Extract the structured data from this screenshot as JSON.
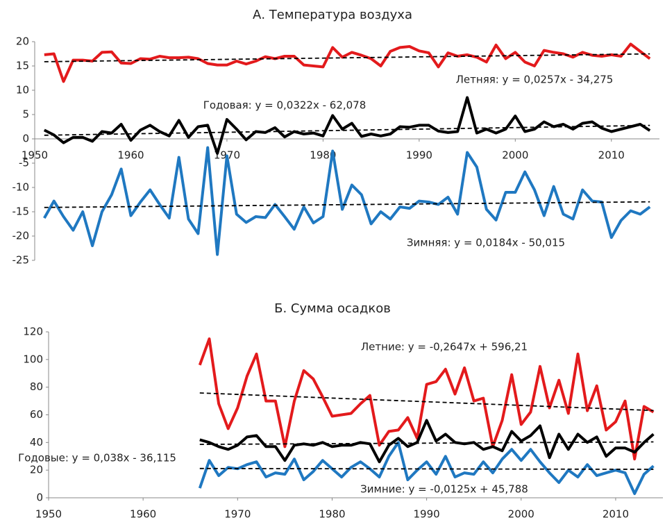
{
  "chart_data": [
    {
      "type": "line",
      "title": "А. Температура воздуха",
      "x": [
        1951,
        1952,
        1953,
        1954,
        1955,
        1956,
        1957,
        1958,
        1959,
        1960,
        1961,
        1962,
        1963,
        1964,
        1965,
        1966,
        1967,
        1968,
        1969,
        1970,
        1971,
        1972,
        1973,
        1974,
        1975,
        1976,
        1977,
        1978,
        1979,
        1980,
        1981,
        1982,
        1983,
        1984,
        1985,
        1986,
        1987,
        1988,
        1989,
        1990,
        1991,
        1992,
        1993,
        1994,
        1995,
        1996,
        1997,
        1998,
        1999,
        2000,
        2001,
        2002,
        2003,
        2004,
        2005,
        2006,
        2007,
        2008,
        2009,
        2010,
        2011,
        2012,
        2013,
        2014
      ],
      "series": [
        {
          "color": "#e31a1c",
          "values": [
            17.3,
            17.5,
            11.8,
            16.2,
            16.2,
            16,
            17.8,
            17.9,
            15.6,
            15.5,
            16.5,
            16.4,
            17,
            16.7,
            16.7,
            16.8,
            16.5,
            15.5,
            15.2,
            15.2,
            16,
            15.4,
            16,
            16.9,
            16.5,
            17,
            17,
            15.2,
            15,
            14.8,
            18.8,
            16.8,
            17.8,
            17.2,
            16.5,
            15,
            18,
            18.8,
            19,
            18.1,
            17.7,
            14.8,
            17.7,
            17,
            17.3,
            16.8,
            15.8,
            19.3,
            16.5,
            17.8,
            15.8,
            15,
            18.2,
            17.8,
            17.5,
            16.8,
            17.8,
            17.2,
            17,
            17.3,
            17,
            19.5,
            18,
            16.5
          ]
        },
        {
          "color": "#000000",
          "values": [
            1.8,
            0.8,
            -0.8,
            0.3,
            0.3,
            -0.5,
            1.5,
            1.2,
            3,
            -0.3,
            1.8,
            2.8,
            1.5,
            0.6,
            3.8,
            0.3,
            2.5,
            2.8,
            -3,
            4,
            2,
            -0.2,
            1.5,
            1.3,
            2.3,
            0.4,
            1.5,
            1,
            1.2,
            0.6,
            4.8,
            2,
            3.2,
            0.5,
            1,
            0.6,
            1,
            2.5,
            2.4,
            2.8,
            2.8,
            1.6,
            1.3,
            1.5,
            8.5,
            1.2,
            2,
            1.2,
            2,
            4.7,
            1.5,
            2,
            3.5,
            2.5,
            3,
            2,
            3.2,
            3.5,
            2.2,
            1.5,
            2,
            2.5,
            3,
            1.7
          ]
        },
        {
          "color": "#1f78c1",
          "values": [
            -16.3,
            -12.8,
            -16,
            -18.8,
            -15,
            -22,
            -15,
            -11.5,
            -6.2,
            -15.8,
            -13,
            -10.5,
            -13.5,
            -16.3,
            -3.8,
            -16.5,
            -19.5,
            -1.8,
            -23.8,
            -3.5,
            -15.5,
            -17.2,
            -16,
            -16.2,
            -13.5,
            -16,
            -18.6,
            -14,
            -17.3,
            -16,
            -2.5,
            -14.5,
            -9.5,
            -11.5,
            -17.5,
            -15,
            -16.5,
            -14,
            -14.3,
            -12.8,
            -13,
            -13.5,
            -12,
            -15.5,
            -2.8,
            -5.8,
            -14.5,
            -16.7,
            -11,
            -11,
            -6.8,
            -10.5,
            -15.8,
            -9.8,
            -15.5,
            -16.5,
            -10.5,
            -12.8,
            -13,
            -20.3,
            -16.8,
            -14.8,
            -15.5,
            -14
          ]
        }
      ],
      "trends": [
        {
          "x": [
            1951,
            2014
          ],
          "values": [
            15.87,
            17.48
          ]
        },
        {
          "x": [
            1951,
            2014
          ],
          "values": [
            0.74,
            2.77
          ]
        },
        {
          "x": [
            1951,
            2014
          ],
          "values": [
            -14.12,
            -12.96
          ]
        }
      ],
      "annotations": [
        {
          "text": "Летняя: y = 0,0257x - 34,275",
          "color": "#e31a1c"
        },
        {
          "text": "Годовая: y = 0,0322x - 62,078",
          "color": "#000000"
        },
        {
          "text": "Зимняя: y = 0,0184x - 50,015",
          "color": "#1f78c1"
        }
      ],
      "xlim": [
        1950,
        2015
      ],
      "xticks": [
        1950,
        1960,
        1970,
        1980,
        1990,
        2000,
        2010
      ],
      "ylim": [
        -25,
        20
      ],
      "yticks": [
        20,
        15,
        10,
        5,
        0,
        -5,
        -10,
        -15,
        -20,
        -25
      ]
    },
    {
      "type": "line",
      "title": "Б. Сумма осадков",
      "x": [
        1966,
        1967,
        1968,
        1969,
        1970,
        1971,
        1972,
        1973,
        1974,
        1975,
        1976,
        1977,
        1978,
        1979,
        1980,
        1981,
        1982,
        1983,
        1984,
        1985,
        1986,
        1987,
        1988,
        1989,
        1990,
        1991,
        1992,
        1993,
        1994,
        1995,
        1996,
        1997,
        1998,
        1999,
        2000,
        2001,
        2002,
        2003,
        2004,
        2005,
        2006,
        2007,
        2008,
        2009,
        2010,
        2011,
        2012,
        2013,
        2014
      ],
      "series": [
        {
          "color": "#e31a1c",
          "values": [
            96,
            115,
            68,
            50,
            65,
            88,
            104,
            70,
            70,
            37,
            70,
            92,
            86,
            73,
            59,
            60,
            61,
            68,
            74,
            38,
            48,
            49,
            58,
            43,
            82,
            84,
            93,
            75,
            94,
            70,
            72,
            37,
            56,
            89,
            53,
            62,
            95,
            65,
            85,
            61,
            104,
            63,
            81,
            49,
            55,
            70,
            28,
            66,
            62
          ]
        },
        {
          "color": "#000000",
          "values": [
            42,
            40,
            37,
            35,
            38,
            44,
            45,
            37,
            37,
            27,
            38,
            39,
            38,
            40,
            37,
            38,
            38,
            40,
            39,
            26,
            38,
            43,
            37,
            40,
            56,
            41,
            46,
            40,
            39,
            40,
            35,
            37,
            34,
            48,
            41,
            45,
            52,
            29,
            46,
            35,
            46,
            40,
            44,
            30,
            36,
            36,
            33,
            40,
            46
          ]
        },
        {
          "color": "#1f78c1",
          "values": [
            7,
            27,
            16,
            22,
            21,
            24,
            26,
            15,
            18,
            17,
            28,
            13,
            19,
            27,
            21,
            15,
            22,
            26,
            21,
            15,
            30,
            40,
            13,
            20,
            26,
            17,
            30,
            15,
            18,
            17,
            26,
            18,
            28,
            35,
            27,
            35,
            26,
            18,
            11,
            20,
            15,
            24,
            16,
            18,
            20,
            18,
            3,
            17,
            23
          ]
        }
      ],
      "trends": [
        {
          "x": [
            1966,
            2014
          ],
          "values": [
            75.81,
            63.12
          ]
        },
        {
          "x": [
            1966,
            2014
          ],
          "values": [
            38.59,
            40.42
          ]
        },
        {
          "x": [
            1966,
            2014
          ],
          "values": [
            21.21,
            20.61
          ]
        }
      ],
      "annotations": [
        {
          "text": "Летние: y = -0,2647x + 596,21",
          "color": "#e31a1c"
        },
        {
          "text": "Годовые: y = 0,038x - 36,115",
          "color": "#000000"
        },
        {
          "text": "Зимние: y = -0,0125x + 45,788",
          "color": "#1f78c1"
        }
      ],
      "xlim": [
        1950,
        2015
      ],
      "xticks": [
        1950,
        1960,
        1970,
        1980,
        1990,
        2000,
        2010
      ],
      "ylim": [
        0,
        120
      ],
      "yticks": [
        0,
        20,
        40,
        60,
        80,
        100,
        120
      ]
    }
  ]
}
